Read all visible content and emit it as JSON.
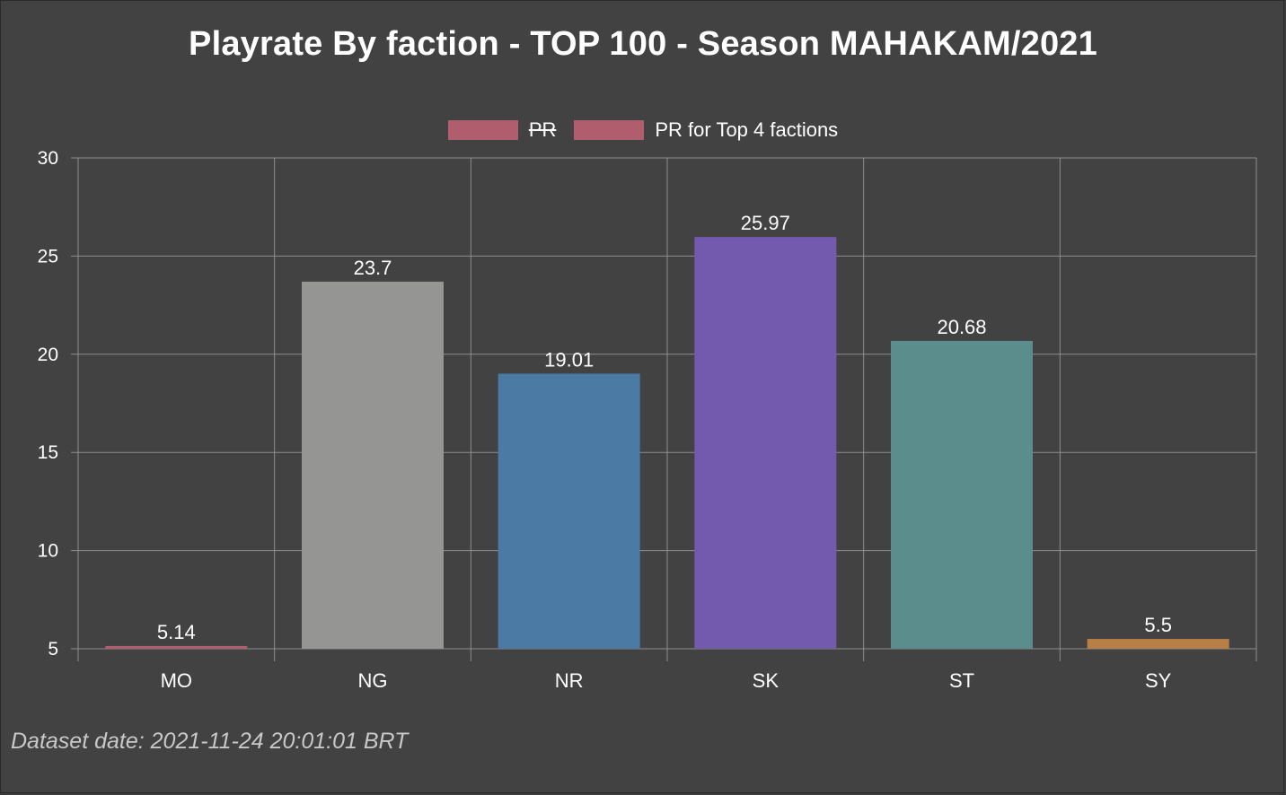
{
  "chart_data": {
    "type": "bar",
    "title": "Playrate By faction - TOP 100 - Season MAHAKAM/2021",
    "categories": [
      "MO",
      "NG",
      "NR",
      "SK",
      "ST",
      "SY"
    ],
    "series": [
      {
        "name": "PR for Top 4 factions",
        "values": [
          5.14,
          23.7,
          19.01,
          25.97,
          20.68,
          5.5
        ],
        "data_labels": [
          "5.14",
          "23.7",
          "19.01",
          "25.97",
          "20.68",
          "5.5"
        ],
        "colors": [
          "#b05d6d",
          "#959593",
          "#4b7aa4",
          "#735aae",
          "#5a8d8c",
          "#b88046"
        ]
      }
    ],
    "legend": [
      {
        "label": "PR",
        "color": "#b05d6d",
        "hidden": true
      },
      {
        "label": "PR for Top 4 factions",
        "color": "#b05d6d",
        "hidden": false
      }
    ],
    "yticks": [
      "30",
      "25",
      "20",
      "15",
      "10",
      "5"
    ],
    "ylim": [
      5,
      30
    ],
    "grid": true,
    "legend_position": "top"
  },
  "footer": {
    "dataset_date": "Dataset date: 2021-11-24 20:01:01 BRT"
  }
}
